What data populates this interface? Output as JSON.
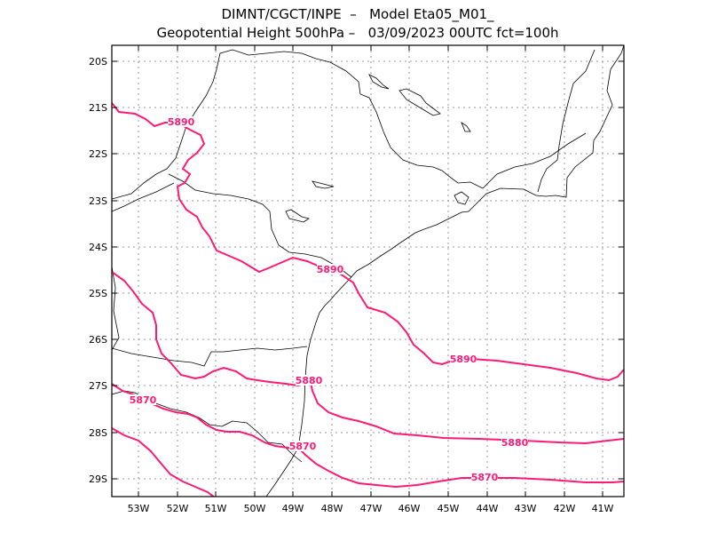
{
  "header": {
    "line1": "DIMNT/CGCT/INPE  –   Model Eta05_M01_",
    "line2": "Geopotential Height 500hPa –   03/09/2023 00UTC fct=100h"
  },
  "axes": {
    "lat_labels": [
      "20S",
      "21S",
      "22S",
      "23S",
      "24S",
      "25S",
      "26S",
      "27S",
      "28S",
      "29S"
    ],
    "lon_labels": [
      "53W",
      "52W",
      "51W",
      "50W",
      "49W",
      "48W",
      "47W",
      "46W",
      "45W",
      "44W",
      "43W",
      "42W",
      "41W"
    ]
  },
  "contours": {
    "color": "#ff1a75",
    "labels": [
      {
        "name": "c5890-a",
        "text": "5890"
      },
      {
        "name": "c5890-b",
        "text": "5890"
      },
      {
        "name": "c5890-c",
        "text": "5890"
      },
      {
        "name": "c5880-a",
        "text": "5880"
      },
      {
        "name": "c5880-b",
        "text": "5880"
      },
      {
        "name": "c5870-a",
        "text": "5870"
      },
      {
        "name": "c5870-b",
        "text": "5870"
      },
      {
        "name": "c5870-c",
        "text": "5870"
      }
    ]
  },
  "colors": {
    "contour": "#ff1a75",
    "frame": "#000000",
    "border": "#000000",
    "grid": "#9a9a9a"
  }
}
